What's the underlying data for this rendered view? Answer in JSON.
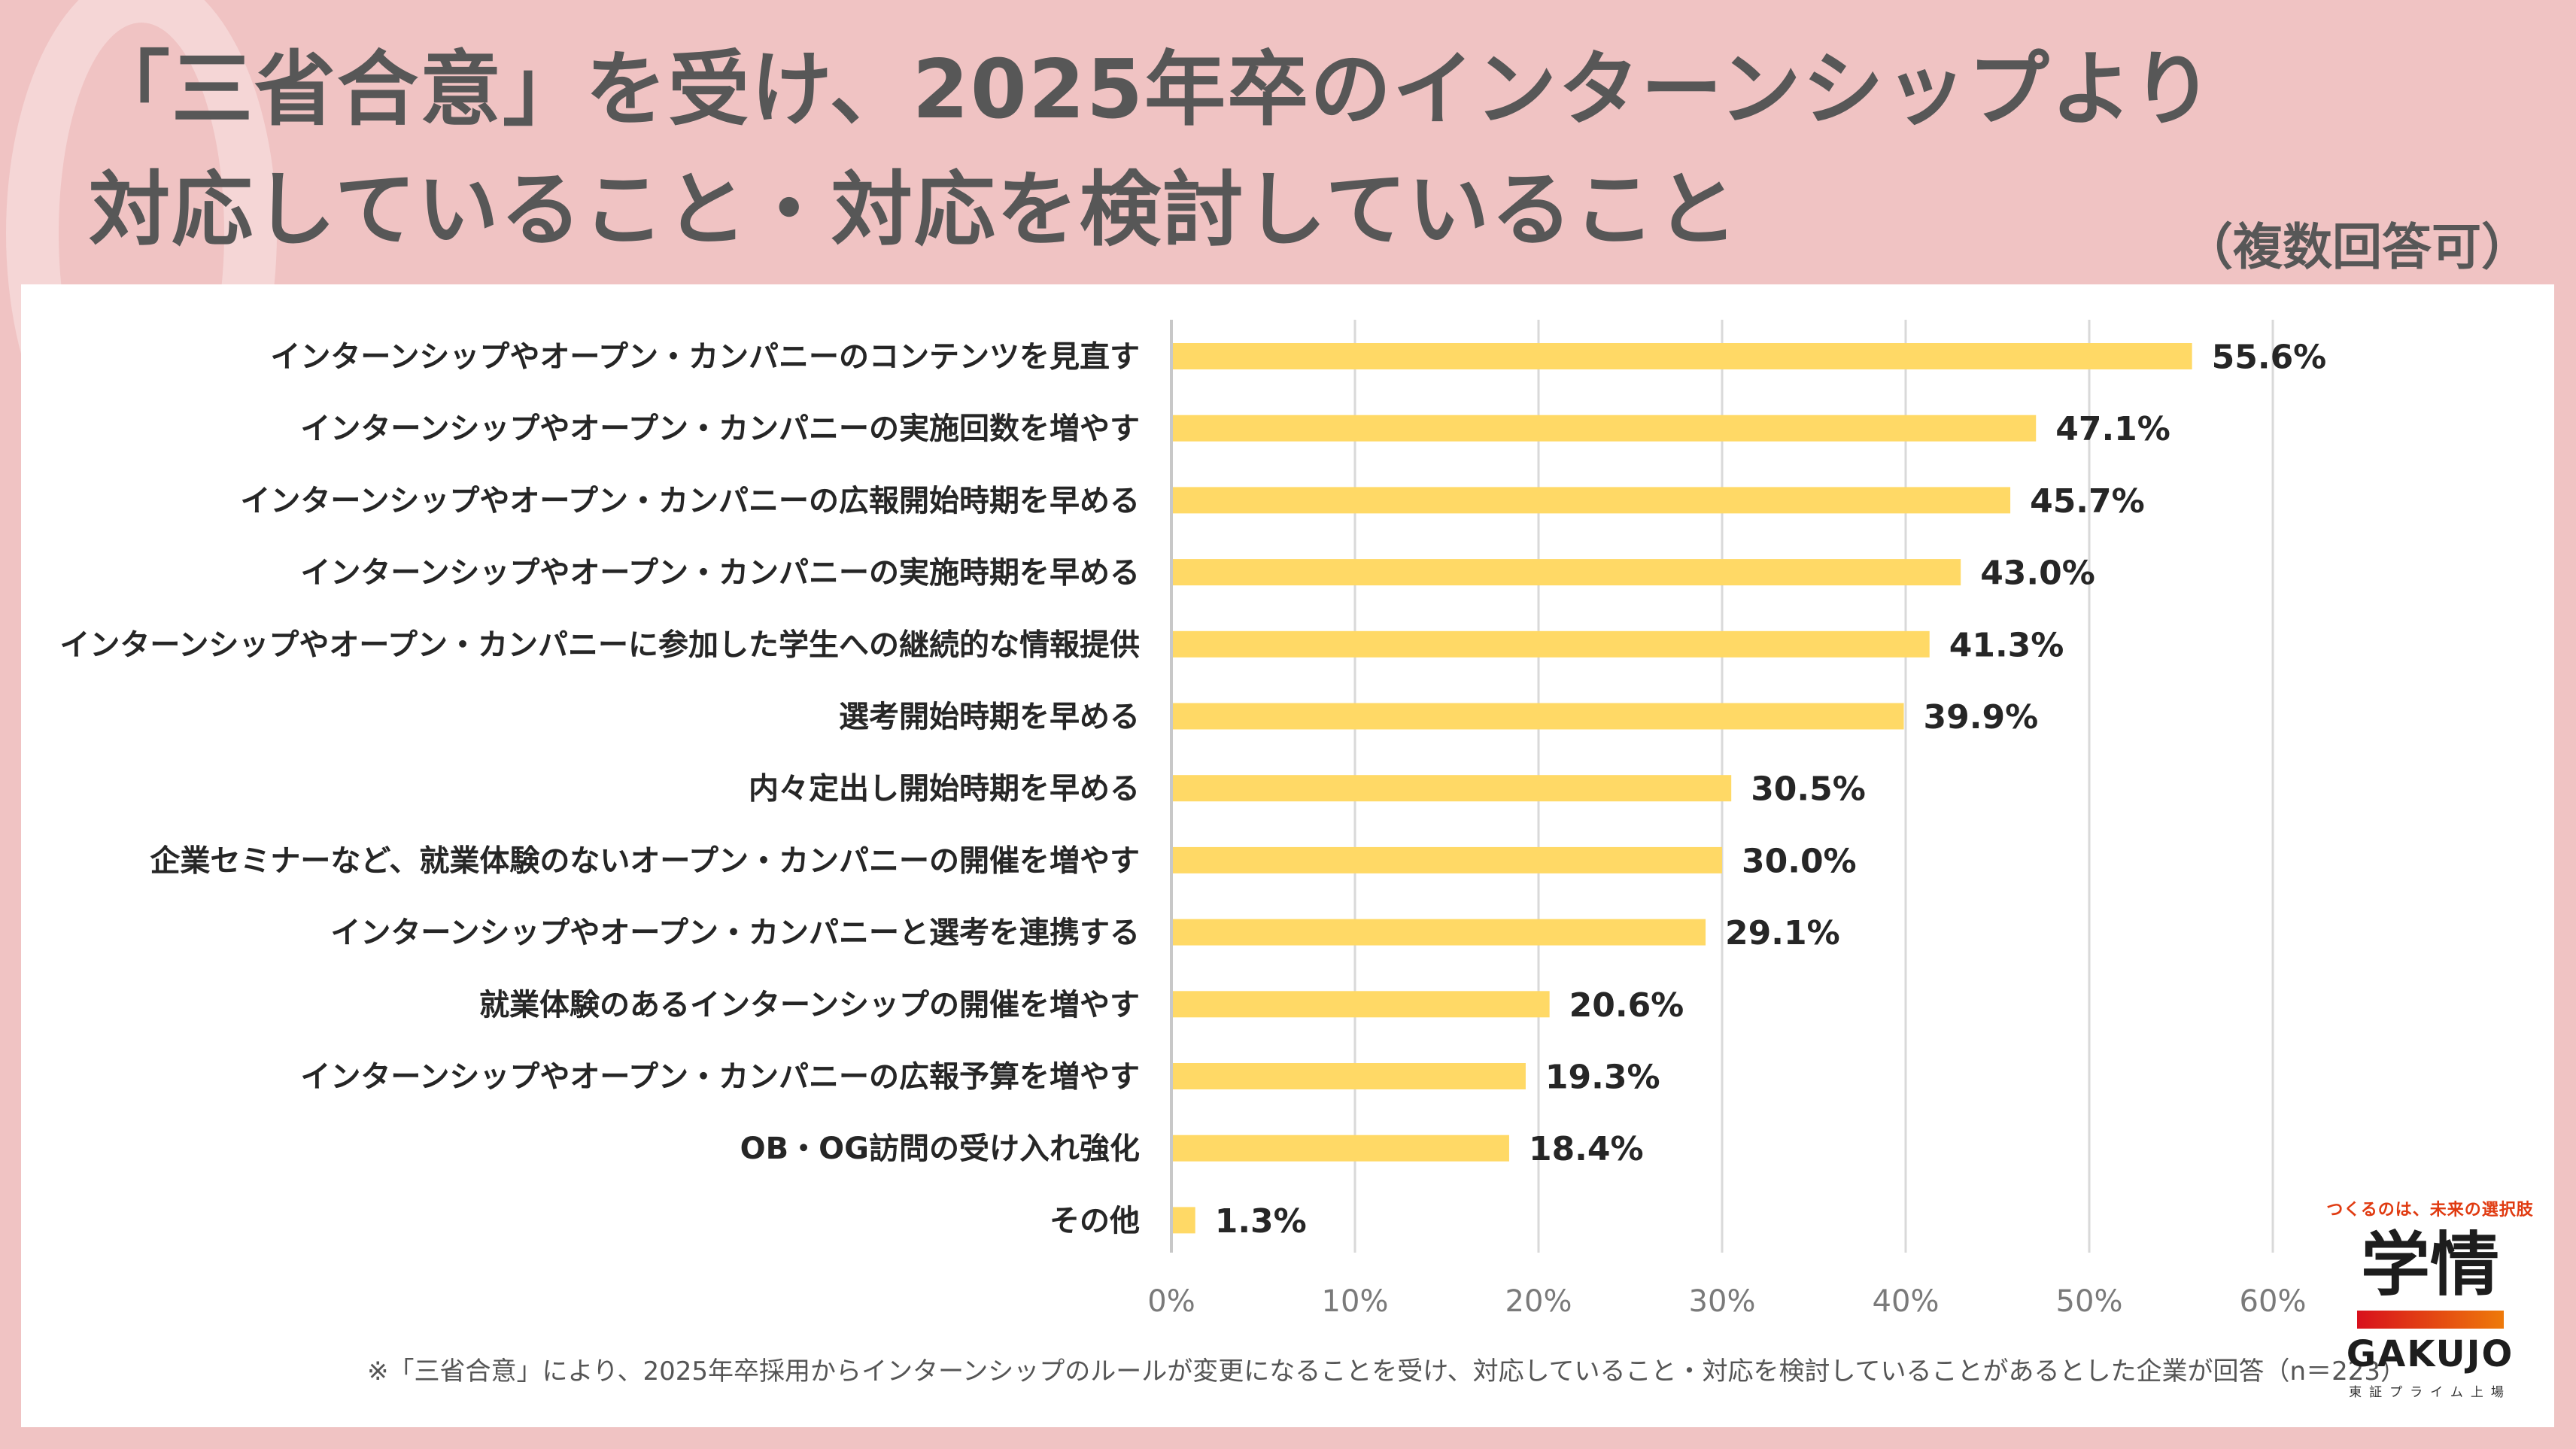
{
  "header": {
    "title_line1": "「三省合意」を受け、2025年卒のインターンシップより",
    "title_line2": "対応していること・対応を検討していること",
    "note": "（複数回答可）"
  },
  "footnote": "※「三省合意」により、2025年卒採用からインターンシップのルールが変更になることを受け、対応していること・対応を検討していることがあるとした企業が回答（n＝223）",
  "logo": {
    "tagline": "つくるのは、未来の選択肢",
    "kanji": "学情",
    "brand": "GAKUJO",
    "sub": "東証プライム上場"
  },
  "chart_data": {
    "type": "bar",
    "orientation": "horizontal",
    "title": "「三省合意」を受け、2025年卒のインターンシップより対応していること・対応を検討していること（複数回答可）",
    "xlabel": "",
    "ylabel": "",
    "xlim": [
      0,
      60
    ],
    "xticks": [
      0,
      10,
      20,
      30,
      40,
      50,
      60
    ],
    "xtick_labels": [
      "0%",
      "10%",
      "20%",
      "30%",
      "40%",
      "50%",
      "60%"
    ],
    "grid": true,
    "bar_color": "#ffd966",
    "categories": [
      "インターンシップやオープン・カンパニーのコンテンツを見直す",
      "インターンシップやオープン・カンパニーの実施回数を増やす",
      "インターンシップやオープン・カンパニーの広報開始時期を早める",
      "インターンシップやオープン・カンパニーの実施時期を早める",
      "インターンシップやオープン・カンパニーに参加した学生への継続的な情報提供",
      "選考開始時期を早める",
      "内々定出し開始時期を早める",
      "企業セミナーなど、就業体験のないオープン・カンパニーの開催を増やす",
      "インターンシップやオープン・カンパニーと選考を連携する",
      "就業体験のあるインターンシップの開催を増やす",
      "インターンシップやオープン・カンパニーの広報予算を増やす",
      "OB・OG訪問の受け入れ強化",
      "その他"
    ],
    "values": [
      55.6,
      47.1,
      45.7,
      43.0,
      41.3,
      39.9,
      30.5,
      30.0,
      29.1,
      20.6,
      19.3,
      18.4,
      1.3
    ],
    "value_labels": [
      "55.6%",
      "47.1%",
      "45.7%",
      "43.0%",
      "41.3%",
      "39.9%",
      "30.5%",
      "30.0%",
      "29.1%",
      "20.6%",
      "19.3%",
      "18.4%",
      "1.3%"
    ]
  }
}
